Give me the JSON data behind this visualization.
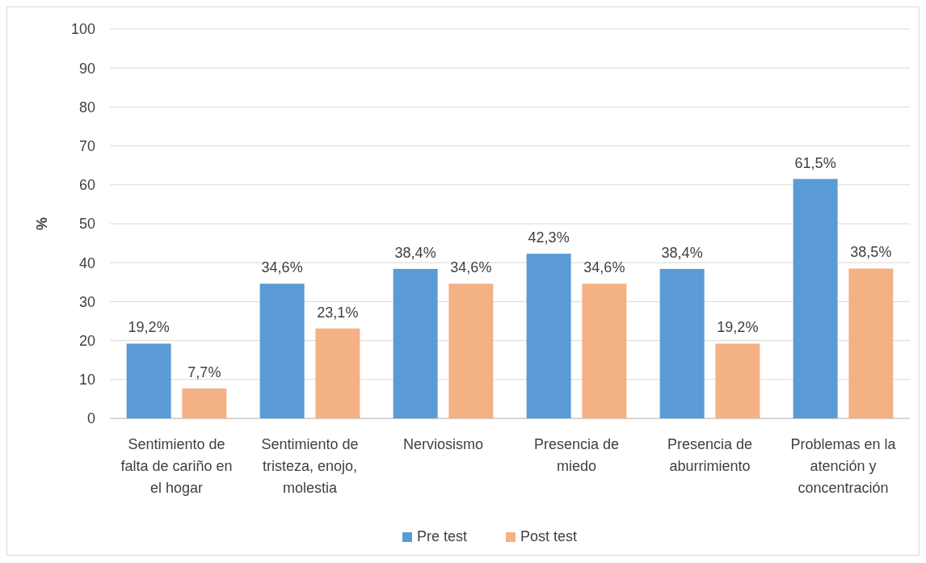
{
  "chart_data": {
    "type": "bar",
    "ylabel": "%",
    "categories": [
      "Sentimiento de falta de cariño en el hogar",
      "Sentimiento de tristeza, enojo, molestia",
      "Nerviosismo",
      "Presencia de miedo",
      "Presencia de aburrimiento",
      "Problemas en la atención y concentración"
    ],
    "series": [
      {
        "name": "Pre test",
        "color": "#5b9bd5",
        "values": [
          19.2,
          34.6,
          38.4,
          42.3,
          38.4,
          61.5
        ],
        "value_labels": [
          "19,2%",
          "34,6%",
          "38,4%",
          "42,3%",
          "38,4%",
          "61,5%"
        ]
      },
      {
        "name": "Post test",
        "color": "#f4b183",
        "values": [
          7.7,
          23.1,
          34.6,
          34.6,
          19.2,
          38.5
        ],
        "value_labels": [
          "7,7%",
          "23,1%",
          "34,6%",
          "34,6%",
          "19,2%",
          "38,5%"
        ]
      }
    ],
    "ylim": [
      0,
      100
    ],
    "yticks": [
      0,
      10,
      20,
      30,
      40,
      50,
      60,
      70,
      80,
      90,
      100
    ],
    "grid": "y",
    "legend": "bottom"
  }
}
